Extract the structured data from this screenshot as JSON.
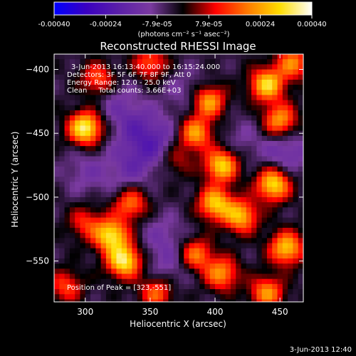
{
  "colorbar": {
    "tick_labels": [
      "-0.00040",
      "-0.00024",
      "-7.9e-05",
      "7.9e-05",
      "0.00024",
      "0.00040"
    ],
    "unit_label": "(photons cm⁻² s⁻¹ asec⁻²)",
    "range": [
      -0.0004,
      0.0004
    ]
  },
  "chart_data": {
    "type": "heatmap",
    "title": "Reconstructed RHESSI Image",
    "xlabel": "Heliocentric X (arcsec)",
    "ylabel": "Heliocentric Y (arcsec)",
    "xlim": [
      276,
      468
    ],
    "ylim": [
      -582,
      -388
    ],
    "xticks": [
      "300",
      "350",
      "400",
      "450"
    ],
    "yticks": [
      "-400",
      "-450",
      "-500",
      "-550"
    ],
    "annotations": [
      "3-Jun-2013 16:13:40.000 to 16:15:24.000",
      "Detectors: 3F 5F 6F 7F 8F 9F, Att 0",
      "Energy Range: 12.0 - 25.0 keV",
      "Clean     Total counts: 3.66E+03"
    ],
    "peak_label": "Position of Peak = [323,-551]",
    "peak": [
      323,
      -551
    ],
    "hotspots": [
      {
        "x": 300,
        "y": -446,
        "value": 0.0004
      },
      {
        "x": 320,
        "y": -530,
        "value": 0.00036
      },
      {
        "x": 330,
        "y": -550,
        "value": 0.00038
      },
      {
        "x": 310,
        "y": -408,
        "value": 0.00022
      },
      {
        "x": 350,
        "y": -395,
        "value": 0.0002
      },
      {
        "x": 335,
        "y": -505,
        "value": 0.00024
      },
      {
        "x": 395,
        "y": -425,
        "value": 0.0003
      },
      {
        "x": 385,
        "y": -450,
        "value": 0.00028
      },
      {
        "x": 405,
        "y": -475,
        "value": 0.00034
      },
      {
        "x": 400,
        "y": -505,
        "value": 0.00032
      },
      {
        "x": 440,
        "y": -412,
        "value": 0.00034
      },
      {
        "x": 450,
        "y": -440,
        "value": 0.00028
      },
      {
        "x": 445,
        "y": -490,
        "value": 0.00036
      },
      {
        "x": 420,
        "y": -515,
        "value": 0.0003
      },
      {
        "x": 455,
        "y": -540,
        "value": 0.00032
      },
      {
        "x": 405,
        "y": -560,
        "value": 0.00026
      },
      {
        "x": 385,
        "y": -545,
        "value": 0.00024
      },
      {
        "x": 440,
        "y": -575,
        "value": 0.00026
      },
      {
        "x": 355,
        "y": -575,
        "value": 0.00022
      },
      {
        "x": 285,
        "y": -570,
        "value": 0.00018
      },
      {
        "x": 300,
        "y": -520,
        "value": 0.00016
      },
      {
        "x": 370,
        "y": -470,
        "value": 0.00012
      },
      {
        "x": 460,
        "y": -395,
        "value": 0.00024
      }
    ],
    "coldspots": [
      {
        "x": 355,
        "y": -455,
        "value": -0.00012
      },
      {
        "x": 335,
        "y": -440,
        "value": -0.0001
      },
      {
        "x": 340,
        "y": -468,
        "value": -9e-05
      },
      {
        "x": 455,
        "y": -465,
        "value": -0.00012
      },
      {
        "x": 360,
        "y": -530,
        "value": -8e-05
      },
      {
        "x": 380,
        "y": -418,
        "value": -8e-05
      },
      {
        "x": 300,
        "y": -480,
        "value": -8e-05
      },
      {
        "x": 330,
        "y": -485,
        "value": -6e-05
      },
      {
        "x": 365,
        "y": -555,
        "value": -8e-05
      },
      {
        "x": 420,
        "y": -455,
        "value": -6e-05
      },
      {
        "x": 320,
        "y": -420,
        "value": -6e-05
      }
    ],
    "colormap": [
      "#0000ff",
      "#3a00c0",
      "#5a1fa8",
      "#7a3aa0",
      "#000000",
      "#ff0000",
      "#ff7a00",
      "#ffdd00",
      "#ffffff"
    ]
  },
  "footer": {
    "date": "3-Jun-2013 12:40"
  }
}
